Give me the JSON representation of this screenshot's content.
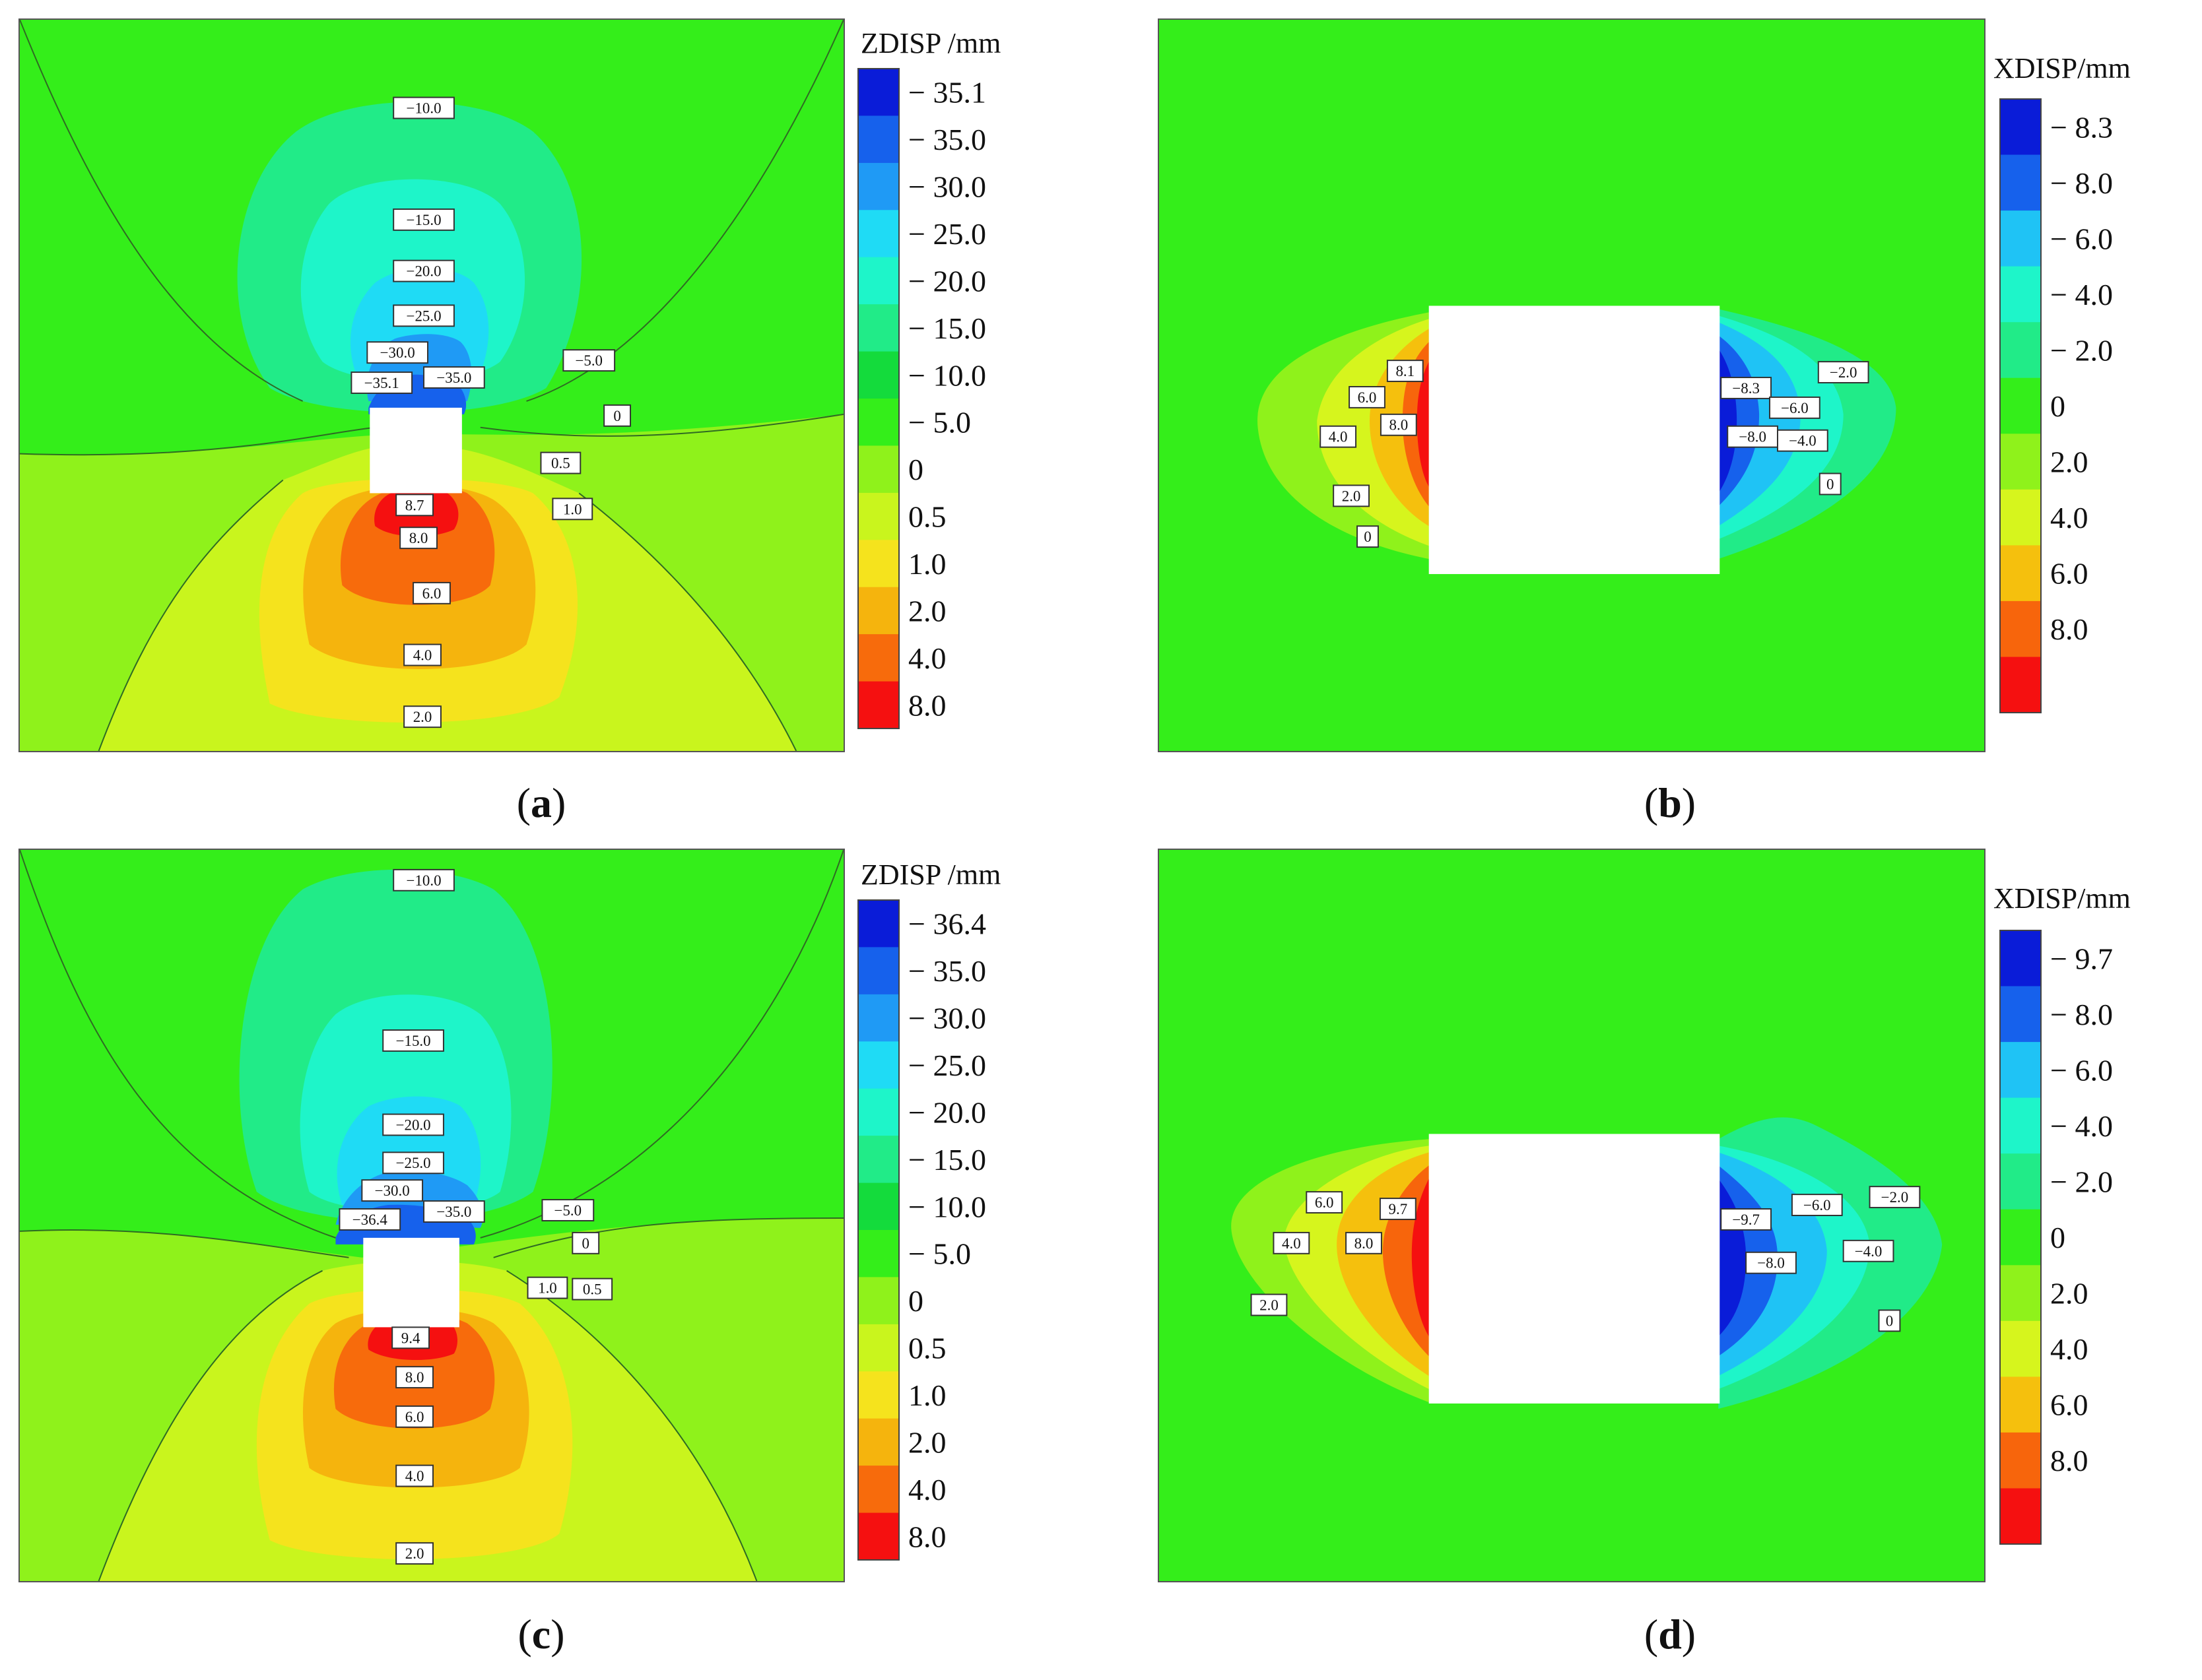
{
  "chart_data": [
    {
      "type": "heatmap",
      "panel": "a",
      "caption_letter": "a",
      "colorbar_title": "ZDISP /mm",
      "colorbar_labels": [
        "− 35.1",
        "− 35.0",
        "− 30.0",
        "− 25.0",
        "− 20.0",
        "− 15.0",
        "− 10.0",
        "− 5.0",
        "0",
        "0.5",
        "1.0",
        "2.0",
        "4.0",
        "8.0"
      ],
      "contour_labels": [
        "−10.0",
        "−15.0",
        "−20.0",
        "−25.0",
        "−30.0",
        "−35.1",
        "−35.0",
        "−5.0",
        "0",
        "0.5",
        "1.0",
        "8.7",
        "8.0",
        "6.0",
        "4.0",
        "2.0"
      ],
      "colors": [
        "#0a1cd8",
        "#1661ec",
        "#1f9af5",
        "#1fdbf5",
        "#1ef5c9",
        "#21eb88",
        "#14db3c",
        "#34ee1a",
        "#8ff21b",
        "#c9f51d",
        "#f5e31d",
        "#f5b40d",
        "#f76b0c",
        "#f51010"
      ]
    },
    {
      "type": "heatmap",
      "panel": "b",
      "caption_letter": "b",
      "colorbar_title": "XDISP/mm",
      "colorbar_labels": [
        "− 8.3",
        "− 8.0",
        "− 6.0",
        "− 4.0",
        "− 2.0",
        "0",
        "2.0",
        "4.0",
        "6.0",
        "8.0"
      ],
      "contour_labels": [
        "8.1",
        "6.0",
        "8.0",
        "4.0",
        "2.0",
        "0",
        "−8.3",
        "−6.0",
        "−8.0",
        "−4.0",
        "−2.0",
        "0"
      ],
      "colors": [
        "#0a1cd8",
        "#1661ec",
        "#1fc3f5",
        "#1ef5c9",
        "#21eb88",
        "#34ee1a",
        "#8ff21b",
        "#d6f51d",
        "#f5c00d",
        "#f7650c",
        "#f51010"
      ]
    },
    {
      "type": "heatmap",
      "panel": "c",
      "caption_letter": "c",
      "colorbar_title": "ZDISP /mm",
      "colorbar_labels": [
        "− 36.4",
        "− 35.0",
        "− 30.0",
        "− 25.0",
        "− 20.0",
        "− 15.0",
        "− 10.0",
        "− 5.0",
        "0",
        "0.5",
        "1.0",
        "2.0",
        "4.0",
        "8.0"
      ],
      "contour_labels": [
        "−10.0",
        "−15.0",
        "−20.0",
        "−25.0",
        "−30.0",
        "−36.4",
        "−35.0",
        "−5.0",
        "0",
        "1.0",
        "0.5",
        "9.4",
        "8.0",
        "6.0",
        "4.0",
        "2.0"
      ],
      "colors": [
        "#0a1cd8",
        "#1661ec",
        "#1f9af5",
        "#1fdbf5",
        "#1ef5c9",
        "#21eb88",
        "#14db3c",
        "#34ee1a",
        "#8ff21b",
        "#c9f51d",
        "#f5e31d",
        "#f5b40d",
        "#f76b0c",
        "#f51010"
      ]
    },
    {
      "type": "heatmap",
      "panel": "d",
      "caption_letter": "d",
      "colorbar_title": "XDISP/mm",
      "colorbar_labels": [
        "− 9.7",
        "− 8.0",
        "− 6.0",
        "− 4.0",
        "− 2.0",
        "0",
        "2.0",
        "4.0",
        "6.0",
        "8.0"
      ],
      "contour_labels": [
        "6.0",
        "9.7",
        "4.0",
        "8.0",
        "2.0",
        "−9.7",
        "−6.0",
        "−8.0",
        "−4.0",
        "−2.0",
        "0"
      ],
      "colors": [
        "#0a1cd8",
        "#1661ec",
        "#1fc3f5",
        "#1ef5c9",
        "#21eb88",
        "#34ee1a",
        "#8ff21b",
        "#d6f51d",
        "#f5c00d",
        "#f7650c",
        "#f51010"
      ]
    }
  ]
}
